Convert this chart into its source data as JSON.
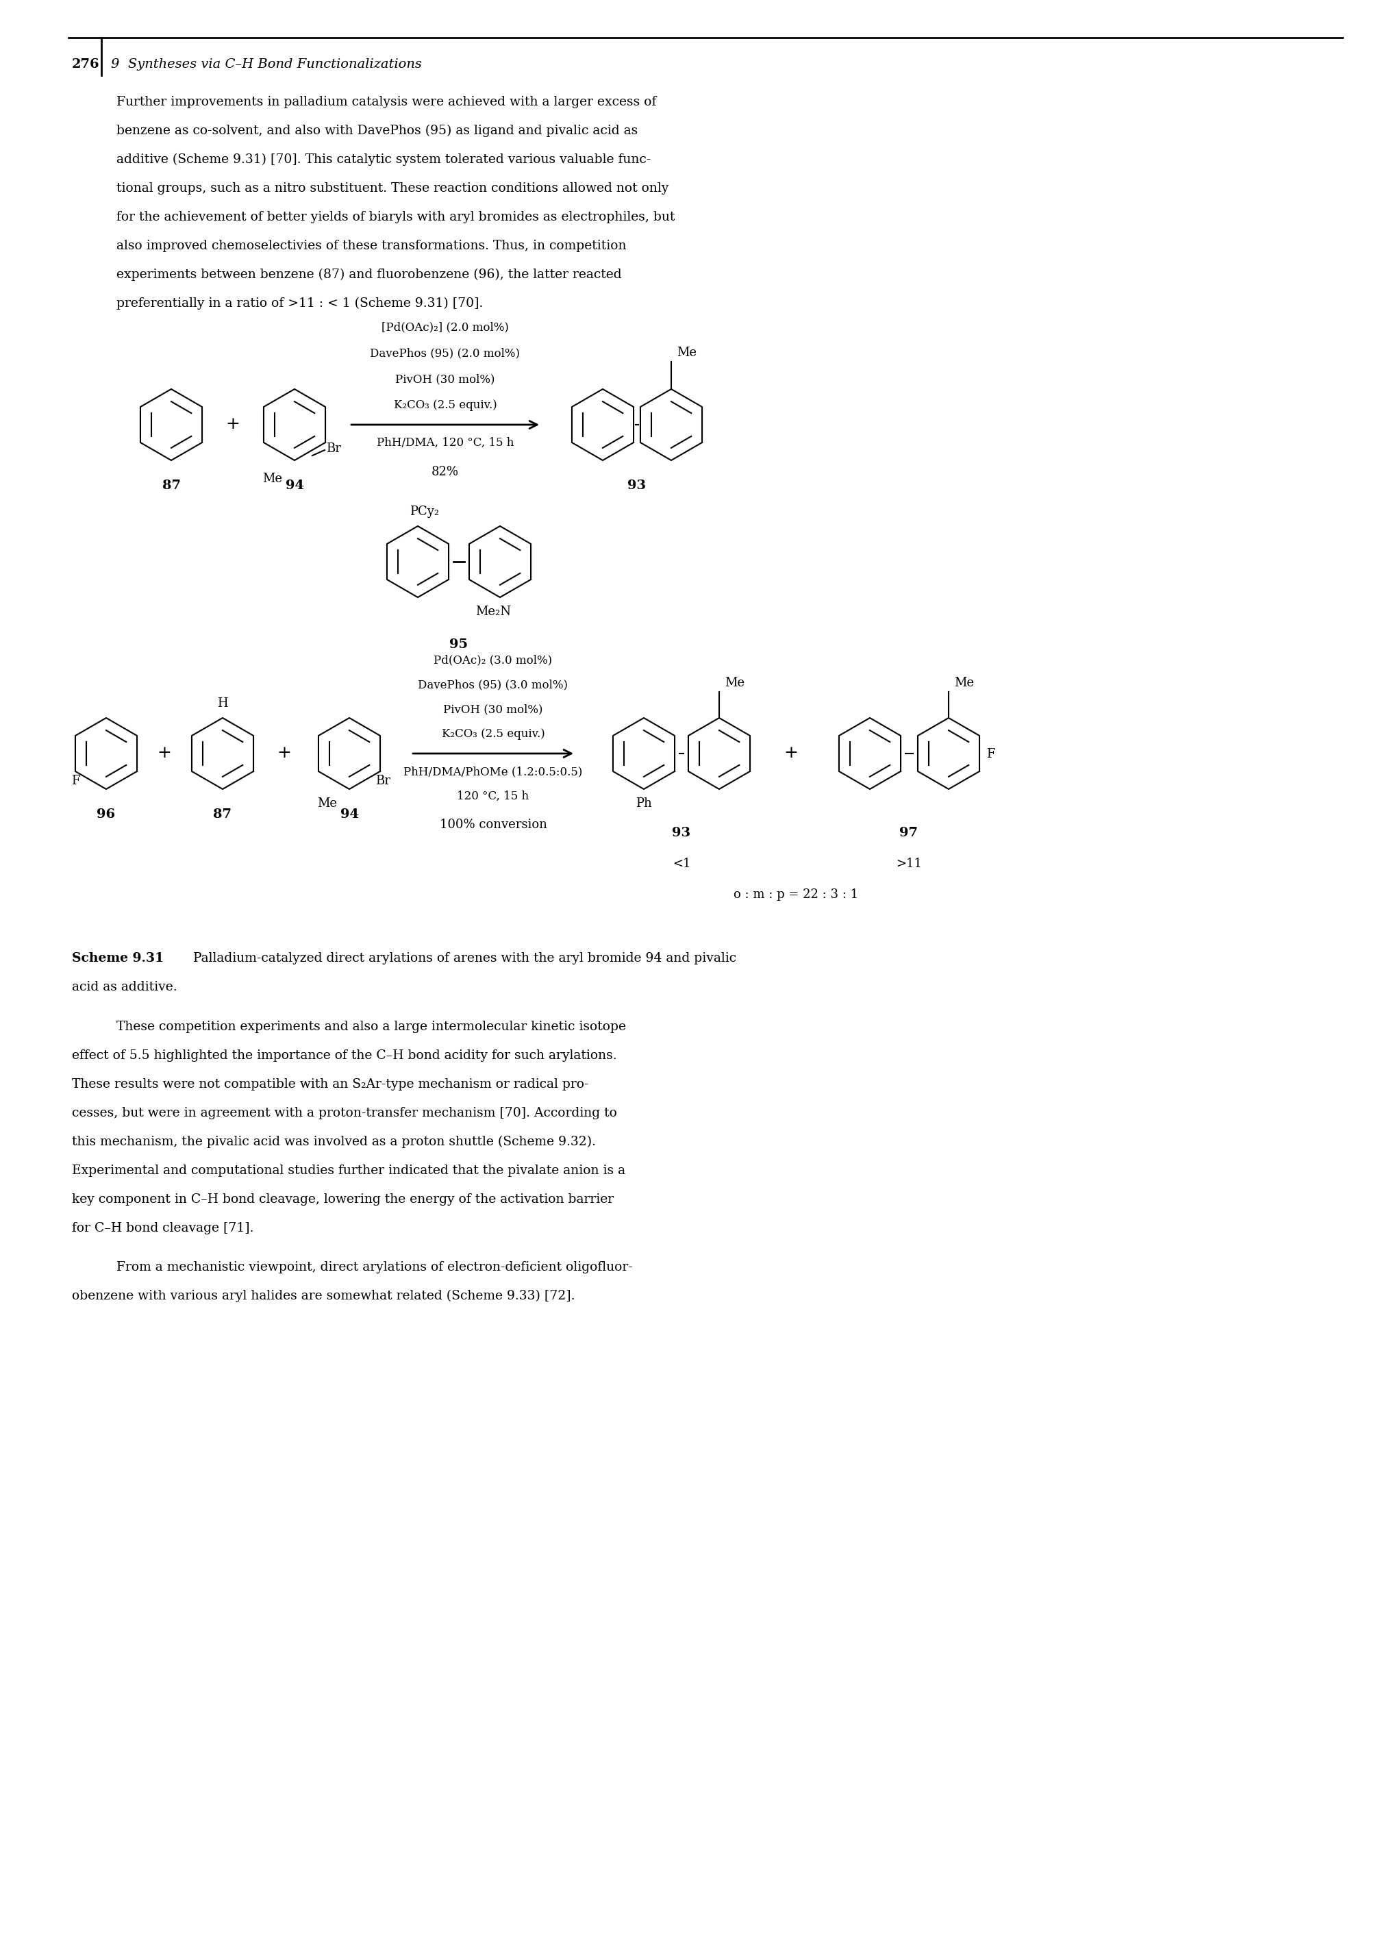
{
  "page_number": "276",
  "header": "9  Syntheses via C–H Bond Functionalizations",
  "para1_lines": [
    "Further improvements in palladium catalysis were achieved with a larger excess of",
    "benzene as co-solvent, and also with DavePhos (95) as ligand and pivalic acid as",
    "additive (Scheme 9.31) [70]. This catalytic system tolerated various valuable func-",
    "tional groups, such as a nitro substituent. These reaction conditions allowed not only",
    "for the achievement of better yields of biaryls with aryl bromides as electrophiles, but",
    "also improved chemoselectivies of these transformations. Thus, in competition",
    "experiments between benzene (87) and fluorobenzene (96), the latter reacted",
    "preferentially in a ratio of >11 : < 1 (Scheme 9.31) [70]."
  ],
  "conditions1": [
    "[Pd(OAc)₂] (2.0 mol%)",
    "DavePhos (95) (2.0 mol%)",
    "PivOH (30 mol%)",
    "K₂CO₃ (2.5 equiv.)"
  ],
  "conditions1_below": "PhH/DMA, 120 °C, 15 h",
  "yield1": "82%",
  "compound95_top": "PCy₂",
  "compound95_bottom": "Me₂N",
  "compound95_num": "95",
  "conditions2": [
    "Pd(OAc)₂ (3.0 mol%)",
    "DavePhos (95) (3.0 mol%)",
    "PivOH (30 mol%)",
    "K₂CO₃ (2.5 equiv.)"
  ],
  "conditions2_below1": "PhH/DMA/PhOMe (1.2:0.5:0.5)",
  "conditions2_below2": "120 °C, 15 h",
  "yield2": "100% conversion",
  "ratio_93": "<1",
  "ratio_97": ">11",
  "ratio_omp": "o : m : p = 22 : 3 : 1",
  "scheme_bold": "Scheme 9.31",
  "scheme_caption": "  Palladium-catalyzed direct arylations of arenes with the aryl bromide 94 and pivalic",
  "scheme_caption2": "acid as additive.",
  "para2_lines": [
    "These competition experiments and also a large intermolecular kinetic isotope",
    "effect of 5.5 highlighted the importance of the C–H bond acidity for such arylations.",
    "These results were not compatible with an S₂Ar-type mechanism or radical pro-",
    "cesses, but were in agreement with a proton-transfer mechanism [70]. According to",
    "this mechanism, the pivalic acid was involved as a proton shuttle (Scheme 9.32).",
    "Experimental and computational studies further indicated that the pivalate anion is a",
    "key component in C–H bond cleavage, lowering the energy of the activation barrier",
    "for C–H bond cleavage [71]."
  ],
  "para3_lines": [
    "From a mechanistic viewpoint, direct arylations of electron-deficient oligofluor-",
    "obenzene with various aryl halides are somewhat related (Scheme 9.33) [72]."
  ],
  "bg_color": "#ffffff",
  "text_color": "#000000"
}
